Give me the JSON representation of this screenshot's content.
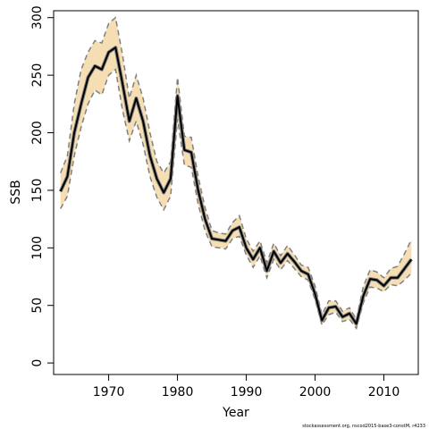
{
  "chart_data": {
    "type": "line",
    "xlabel": "Year",
    "ylabel": "SSB",
    "xlim": [
      1962,
      2015
    ],
    "ylim": [
      -10,
      306
    ],
    "xticks": [
      1970,
      1980,
      1990,
      2000,
      2010
    ],
    "yticks": [
      0,
      50,
      100,
      150,
      200,
      250,
      300
    ],
    "footnote": "stockassessment.org, nscod2015-base3-constM, r4233",
    "colors": {
      "band": "#f5deb3",
      "line": "#000000",
      "bound": "#808080"
    },
    "x": [
      1963,
      1964,
      1965,
      1966,
      1967,
      1968,
      1969,
      1970,
      1971,
      1972,
      1973,
      1974,
      1975,
      1976,
      1977,
      1978,
      1979,
      1980,
      1981,
      1982,
      1983,
      1984,
      1985,
      1986,
      1987,
      1988,
      1989,
      1990,
      1991,
      1992,
      1993,
      1994,
      1995,
      1996,
      1997,
      1998,
      1999,
      2000,
      2001,
      2002,
      2003,
      2004,
      2005,
      2006,
      2007,
      2008,
      2009,
      2010,
      2011,
      2012,
      2013,
      2014
    ],
    "series": [
      {
        "values": [
          149,
          162,
          200,
          225,
          248,
          258,
          255,
          270,
          274,
          243,
          210,
          230,
          210,
          180,
          160,
          148,
          160,
          232,
          185,
          183,
          150,
          125,
          108,
          107,
          106,
          115,
          118,
          100,
          90,
          100,
          80,
          97,
          87,
          95,
          88,
          80,
          77,
          60,
          37,
          48,
          49,
          40,
          43,
          34,
          58,
          73,
          72,
          67,
          74,
          74,
          82,
          90
        ]
      },
      {
        "values": [
          165,
          180,
          225,
          255,
          270,
          280,
          278,
          295,
          300,
          268,
          230,
          250,
          230,
          200,
          175,
          165,
          175,
          248,
          197,
          196,
          162,
          135,
          115,
          113,
          112,
          122,
          128,
          108,
          97,
          106,
          87,
          104,
          93,
          102,
          94,
          85,
          83,
          67,
          42,
          54,
          54,
          45,
          48,
          38,
          66,
          81,
          79,
          74,
          82,
          84,
          95,
          107
        ]
      },
      {
        "values": [
          134,
          145,
          180,
          205,
          225,
          237,
          233,
          250,
          255,
          220,
          193,
          210,
          190,
          162,
          144,
          133,
          145,
          212,
          172,
          170,
          138,
          115,
          101,
          100,
          99,
          108,
          110,
          94,
          83,
          93,
          74,
          90,
          81,
          89,
          82,
          75,
          72,
          55,
          33,
          42,
          44,
          36,
          38,
          30,
          52,
          66,
          65,
          62,
          68,
          67,
          72,
          78
        ]
      }
    ]
  }
}
